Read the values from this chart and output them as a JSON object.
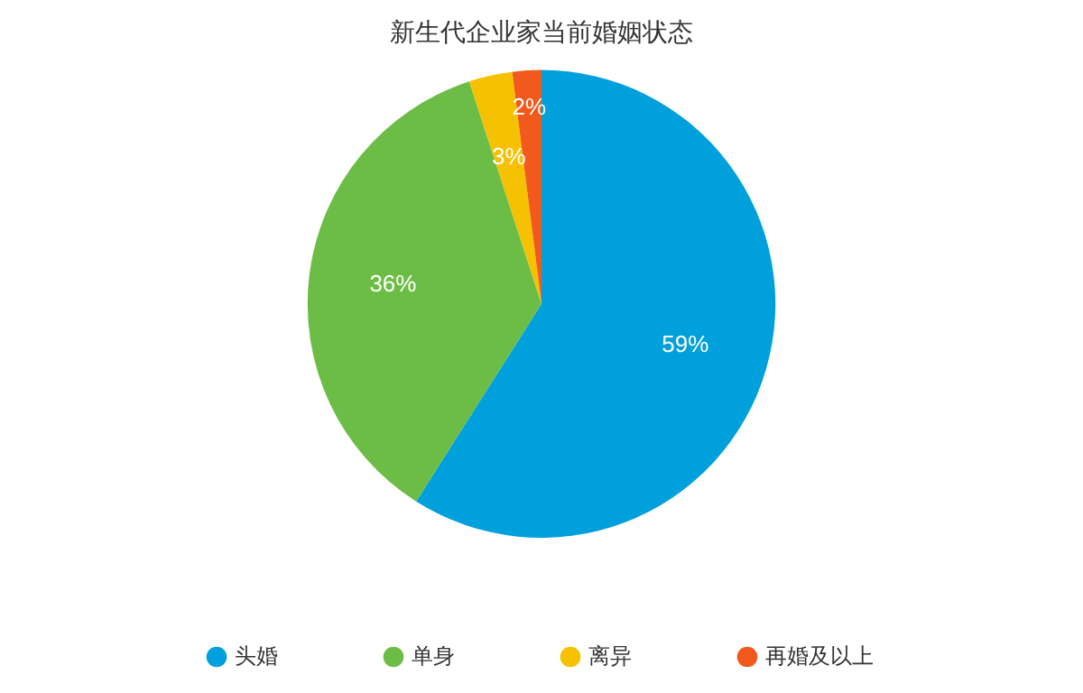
{
  "chart_data": {
    "type": "pie",
    "title": "新生代企业家当前婚姻状态",
    "categories": [
      "头婚",
      "单身",
      "离异",
      "再婚及以上"
    ],
    "values": [
      59,
      36,
      3,
      2
    ],
    "colors": [
      "#00a0dc",
      "#6cbd45",
      "#f5c100",
      "#f15a1c"
    ],
    "value_labels": [
      "59%",
      "36%",
      "3%",
      "2%"
    ],
    "legend": "bottom"
  }
}
